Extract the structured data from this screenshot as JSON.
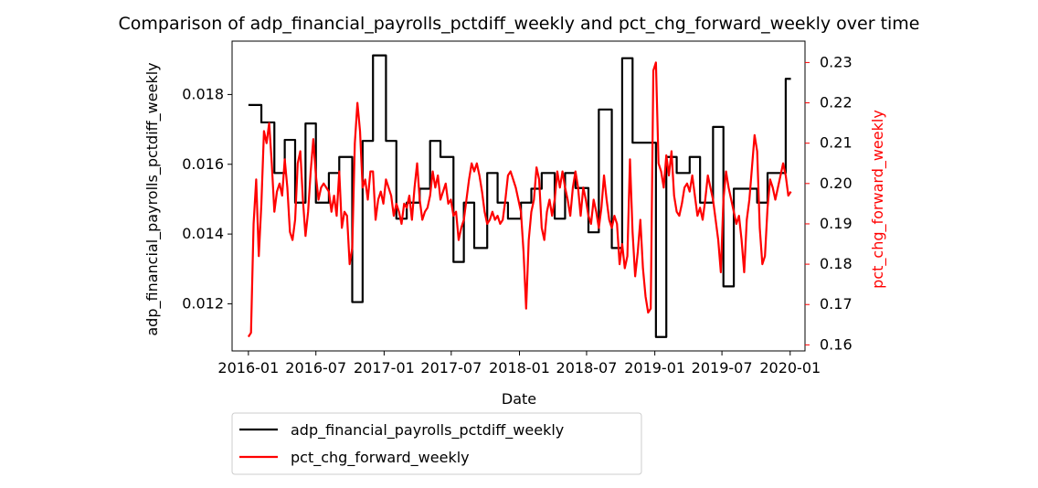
{
  "chart_data": {
    "type": "line",
    "title": "Comparison of adp_financial_payrolls_pctdiff_weekly and pct_chg_forward_weekly over time",
    "xlabel": "Date",
    "ylabel_left": "adp_financial_payrolls_pctdiff_weekly",
    "ylabel_right": "pct_chg_forward_weekly",
    "x_ticks": [
      "2016-01",
      "2016-07",
      "2017-01",
      "2017-07",
      "2018-01",
      "2018-07",
      "2019-01",
      "2019-07",
      "2020-01"
    ],
    "xlim": [
      "2015-11-18",
      "2020-02-10"
    ],
    "y_left_ticks": [
      0.012,
      0.014,
      0.016,
      0.018
    ],
    "y_left_tick_labels": [
      "0.012",
      "0.014",
      "0.016",
      "0.018"
    ],
    "y_left_lim": [
      0.01065,
      0.01953
    ],
    "y_right_ticks": [
      0.16,
      0.17,
      0.18,
      0.19,
      0.2,
      0.21,
      0.22,
      0.23
    ],
    "y_right_tick_labels": [
      "0.16",
      "0.17",
      "0.18",
      "0.19",
      "0.20",
      "0.21",
      "0.22",
      "0.23"
    ],
    "y_right_lim": [
      0.1585,
      0.2353
    ],
    "legend_position": "below-left",
    "series": [
      {
        "name": "adp_financial_payrolls_pctdiff_weekly",
        "axis": "left",
        "color": "#000000",
        "step": true,
        "points": [
          [
            "2016-01-01",
            0.0177
          ],
          [
            "2016-02-05",
            0.0172
          ],
          [
            "2016-03-11",
            0.01575
          ],
          [
            "2016-04-08",
            0.0167
          ],
          [
            "2016-05-06",
            0.0149
          ],
          [
            "2016-06-03",
            0.01717
          ],
          [
            "2016-07-01",
            0.0149
          ],
          [
            "2016-08-05",
            0.01575
          ],
          [
            "2016-09-02",
            0.01621
          ],
          [
            "2016-10-07",
            0.01205
          ],
          [
            "2016-11-04",
            0.01667
          ],
          [
            "2016-12-02",
            0.01912
          ],
          [
            "2017-01-06",
            0.01667
          ],
          [
            "2017-02-03",
            0.01444
          ],
          [
            "2017-03-03",
            0.0149
          ],
          [
            "2017-04-07",
            0.0153
          ],
          [
            "2017-05-05",
            0.01667
          ],
          [
            "2017-06-02",
            0.01621
          ],
          [
            "2017-07-07",
            0.0132
          ],
          [
            "2017-08-04",
            0.0149
          ],
          [
            "2017-09-01",
            0.0136
          ],
          [
            "2017-10-06",
            0.01575
          ],
          [
            "2017-11-03",
            0.0149
          ],
          [
            "2017-12-01",
            0.01444
          ],
          [
            "2018-01-05",
            0.0149
          ],
          [
            "2018-02-02",
            0.0153
          ],
          [
            "2018-03-02",
            0.01575
          ],
          [
            "2018-04-06",
            0.01444
          ],
          [
            "2018-05-04",
            0.01575
          ],
          [
            "2018-06-01",
            0.01532
          ],
          [
            "2018-07-06",
            0.01405
          ],
          [
            "2018-08-03",
            0.01757
          ],
          [
            "2018-09-07",
            0.0136
          ],
          [
            "2018-10-05",
            0.01904
          ],
          [
            "2018-11-02",
            0.01662
          ],
          [
            "2018-12-07",
            0.01662
          ],
          [
            "2019-01-04",
            0.01105
          ],
          [
            "2019-02-01",
            0.01621
          ],
          [
            "2019-03-01",
            0.01575
          ],
          [
            "2019-04-05",
            0.01621
          ],
          [
            "2019-05-03",
            0.0149
          ],
          [
            "2019-06-07",
            0.01707
          ],
          [
            "2019-07-05",
            0.0125
          ],
          [
            "2019-08-02",
            0.0153
          ],
          [
            "2019-09-06",
            0.0153
          ],
          [
            "2019-10-04",
            0.0149
          ],
          [
            "2019-11-01",
            0.01575
          ],
          [
            "2019-12-06",
            0.01575
          ],
          [
            "2019-12-20",
            0.01845
          ],
          [
            "2020-01-03",
            0.01845
          ]
        ]
      },
      {
        "name": "pct_chg_forward_weekly",
        "axis": "right",
        "color": "#ff0000",
        "step": false,
        "points": [
          [
            "2016-01-01",
            0.162
          ],
          [
            "2016-01-08",
            0.163
          ],
          [
            "2016-01-15",
            0.19
          ],
          [
            "2016-01-22",
            0.201
          ],
          [
            "2016-01-29",
            0.182
          ],
          [
            "2016-02-05",
            0.195
          ],
          [
            "2016-02-12",
            0.213
          ],
          [
            "2016-02-19",
            0.21
          ],
          [
            "2016-02-26",
            0.215
          ],
          [
            "2016-03-04",
            0.205
          ],
          [
            "2016-03-11",
            0.193
          ],
          [
            "2016-03-18",
            0.198
          ],
          [
            "2016-03-25",
            0.2
          ],
          [
            "2016-04-01",
            0.197
          ],
          [
            "2016-04-08",
            0.206
          ],
          [
            "2016-04-15",
            0.199
          ],
          [
            "2016-04-22",
            0.188
          ],
          [
            "2016-04-29",
            0.186
          ],
          [
            "2016-05-06",
            0.191
          ],
          [
            "2016-05-13",
            0.205
          ],
          [
            "2016-05-20",
            0.208
          ],
          [
            "2016-05-27",
            0.196
          ],
          [
            "2016-06-03",
            0.187
          ],
          [
            "2016-06-10",
            0.193
          ],
          [
            "2016-06-17",
            0.203
          ],
          [
            "2016-06-24",
            0.211
          ],
          [
            "2016-07-01",
            0.202
          ],
          [
            "2016-07-08",
            0.196
          ],
          [
            "2016-07-15",
            0.199
          ],
          [
            "2016-07-22",
            0.2
          ],
          [
            "2016-07-29",
            0.199
          ],
          [
            "2016-08-05",
            0.198
          ],
          [
            "2016-08-12",
            0.193
          ],
          [
            "2016-08-19",
            0.197
          ],
          [
            "2016-08-26",
            0.192
          ],
          [
            "2016-09-02",
            0.203
          ],
          [
            "2016-09-09",
            0.189
          ],
          [
            "2016-09-16",
            0.193
          ],
          [
            "2016-09-23",
            0.192
          ],
          [
            "2016-09-30",
            0.18
          ],
          [
            "2016-10-07",
            0.184
          ],
          [
            "2016-10-14",
            0.21
          ],
          [
            "2016-10-21",
            0.22
          ],
          [
            "2016-10-28",
            0.213
          ],
          [
            "2016-11-04",
            0.199
          ],
          [
            "2016-11-11",
            0.201
          ],
          [
            "2016-11-18",
            0.196
          ],
          [
            "2016-11-25",
            0.203
          ],
          [
            "2016-12-02",
            0.203
          ],
          [
            "2016-12-09",
            0.191
          ],
          [
            "2016-12-16",
            0.196
          ],
          [
            "2016-12-23",
            0.198
          ],
          [
            "2016-12-30",
            0.195
          ],
          [
            "2017-01-06",
            0.201
          ],
          [
            "2017-01-13",
            0.199
          ],
          [
            "2017-01-20",
            0.197
          ],
          [
            "2017-01-27",
            0.192
          ],
          [
            "2017-02-03",
            0.195
          ],
          [
            "2017-02-10",
            0.193
          ],
          [
            "2017-02-17",
            0.19
          ],
          [
            "2017-02-24",
            0.195
          ],
          [
            "2017-03-03",
            0.194
          ],
          [
            "2017-03-10",
            0.197
          ],
          [
            "2017-03-17",
            0.191
          ],
          [
            "2017-03-24",
            0.199
          ],
          [
            "2017-03-31",
            0.205
          ],
          [
            "2017-04-07",
            0.196
          ],
          [
            "2017-04-14",
            0.191
          ],
          [
            "2017-04-21",
            0.193
          ],
          [
            "2017-04-28",
            0.194
          ],
          [
            "2017-05-05",
            0.197
          ],
          [
            "2017-05-12",
            0.203
          ],
          [
            "2017-05-19",
            0.199
          ],
          [
            "2017-05-26",
            0.202
          ],
          [
            "2017-06-02",
            0.196
          ],
          [
            "2017-06-09",
            0.198
          ],
          [
            "2017-06-16",
            0.2
          ],
          [
            "2017-06-23",
            0.195
          ],
          [
            "2017-06-30",
            0.196
          ],
          [
            "2017-07-07",
            0.192
          ],
          [
            "2017-07-14",
            0.193
          ],
          [
            "2017-07-21",
            0.186
          ],
          [
            "2017-07-28",
            0.189
          ],
          [
            "2017-08-04",
            0.191
          ],
          [
            "2017-08-11",
            0.196
          ],
          [
            "2017-08-18",
            0.201
          ],
          [
            "2017-08-25",
            0.205
          ],
          [
            "2017-09-01",
            0.203
          ],
          [
            "2017-09-08",
            0.205
          ],
          [
            "2017-09-15",
            0.202
          ],
          [
            "2017-09-22",
            0.198
          ],
          [
            "2017-09-29",
            0.193
          ],
          [
            "2017-10-06",
            0.19
          ],
          [
            "2017-10-13",
            0.191
          ],
          [
            "2017-10-20",
            0.193
          ],
          [
            "2017-10-27",
            0.191
          ],
          [
            "2017-11-03",
            0.192
          ],
          [
            "2017-11-10",
            0.19
          ],
          [
            "2017-11-17",
            0.191
          ],
          [
            "2017-11-24",
            0.196
          ],
          [
            "2017-12-01",
            0.202
          ],
          [
            "2017-12-08",
            0.203
          ],
          [
            "2017-12-15",
            0.201
          ],
          [
            "2017-12-22",
            0.199
          ],
          [
            "2017-12-29",
            0.196
          ],
          [
            "2018-01-05",
            0.193
          ],
          [
            "2018-01-12",
            0.183
          ],
          [
            "2018-01-19",
            0.169
          ],
          [
            "2018-01-26",
            0.186
          ],
          [
            "2018-02-02",
            0.193
          ],
          [
            "2018-02-09",
            0.196
          ],
          [
            "2018-02-16",
            0.204
          ],
          [
            "2018-02-23",
            0.201
          ],
          [
            "2018-03-02",
            0.189
          ],
          [
            "2018-03-09",
            0.186
          ],
          [
            "2018-03-16",
            0.193
          ],
          [
            "2018-03-23",
            0.196
          ],
          [
            "2018-03-30",
            0.192
          ],
          [
            "2018-04-06",
            0.196
          ],
          [
            "2018-04-13",
            0.203
          ],
          [
            "2018-04-20",
            0.199
          ],
          [
            "2018-04-27",
            0.203
          ],
          [
            "2018-05-04",
            0.199
          ],
          [
            "2018-05-11",
            0.196
          ],
          [
            "2018-05-18",
            0.192
          ],
          [
            "2018-05-25",
            0.199
          ],
          [
            "2018-06-01",
            0.203
          ],
          [
            "2018-06-08",
            0.199
          ],
          [
            "2018-06-15",
            0.192
          ],
          [
            "2018-06-22",
            0.199
          ],
          [
            "2018-06-29",
            0.196
          ],
          [
            "2018-07-06",
            0.192
          ],
          [
            "2018-07-13",
            0.19
          ],
          [
            "2018-07-20",
            0.196
          ],
          [
            "2018-07-27",
            0.193
          ],
          [
            "2018-08-03",
            0.189
          ],
          [
            "2018-08-10",
            0.194
          ],
          [
            "2018-08-17",
            0.202
          ],
          [
            "2018-08-24",
            0.196
          ],
          [
            "2018-08-31",
            0.191
          ],
          [
            "2018-09-07",
            0.189
          ],
          [
            "2018-09-14",
            0.192
          ],
          [
            "2018-09-21",
            0.19
          ],
          [
            "2018-09-28",
            0.18
          ],
          [
            "2018-10-05",
            0.185
          ],
          [
            "2018-10-12",
            0.179
          ],
          [
            "2018-10-19",
            0.182
          ],
          [
            "2018-10-26",
            0.206
          ],
          [
            "2018-11-02",
            0.188
          ],
          [
            "2018-11-09",
            0.177
          ],
          [
            "2018-11-16",
            0.183
          ],
          [
            "2018-11-23",
            0.191
          ],
          [
            "2018-11-30",
            0.179
          ],
          [
            "2018-12-07",
            0.172
          ],
          [
            "2018-12-14",
            0.168
          ],
          [
            "2018-12-21",
            0.169
          ],
          [
            "2018-12-28",
            0.228
          ],
          [
            "2019-01-04",
            0.23
          ],
          [
            "2019-01-11",
            0.205
          ],
          [
            "2019-01-18",
            0.203
          ],
          [
            "2019-01-25",
            0.199
          ],
          [
            "2019-02-01",
            0.207
          ],
          [
            "2019-02-08",
            0.202
          ],
          [
            "2019-02-15",
            0.208
          ],
          [
            "2019-02-22",
            0.197
          ],
          [
            "2019-03-01",
            0.193
          ],
          [
            "2019-03-08",
            0.192
          ],
          [
            "2019-03-15",
            0.195
          ],
          [
            "2019-03-22",
            0.199
          ],
          [
            "2019-03-29",
            0.2
          ],
          [
            "2019-04-05",
            0.198
          ],
          [
            "2019-04-12",
            0.202
          ],
          [
            "2019-04-19",
            0.197
          ],
          [
            "2019-04-26",
            0.192
          ],
          [
            "2019-05-03",
            0.194
          ],
          [
            "2019-05-10",
            0.191
          ],
          [
            "2019-05-17",
            0.196
          ],
          [
            "2019-05-24",
            0.202
          ],
          [
            "2019-05-31",
            0.199
          ],
          [
            "2019-06-07",
            0.196
          ],
          [
            "2019-06-14",
            0.191
          ],
          [
            "2019-06-21",
            0.186
          ],
          [
            "2019-06-28",
            0.178
          ],
          [
            "2019-07-05",
            0.196
          ],
          [
            "2019-07-12",
            0.203
          ],
          [
            "2019-07-19",
            0.199
          ],
          [
            "2019-07-26",
            0.196
          ],
          [
            "2019-08-02",
            0.193
          ],
          [
            "2019-08-09",
            0.19
          ],
          [
            "2019-08-16",
            0.192
          ],
          [
            "2019-08-23",
            0.186
          ],
          [
            "2019-08-30",
            0.178
          ],
          [
            "2019-09-06",
            0.191
          ],
          [
            "2019-09-13",
            0.196
          ],
          [
            "2019-09-20",
            0.204
          ],
          [
            "2019-09-27",
            0.212
          ],
          [
            "2019-10-04",
            0.208
          ],
          [
            "2019-10-11",
            0.189
          ],
          [
            "2019-10-18",
            0.18
          ],
          [
            "2019-10-25",
            0.182
          ],
          [
            "2019-11-01",
            0.194
          ],
          [
            "2019-11-08",
            0.201
          ],
          [
            "2019-11-15",
            0.199
          ],
          [
            "2019-11-22",
            0.196
          ],
          [
            "2019-11-29",
            0.199
          ],
          [
            "2019-12-06",
            0.202
          ],
          [
            "2019-12-13",
            0.205
          ],
          [
            "2019-12-20",
            0.202
          ],
          [
            "2019-12-27",
            0.197
          ],
          [
            "2020-01-03",
            0.198
          ]
        ]
      }
    ]
  }
}
